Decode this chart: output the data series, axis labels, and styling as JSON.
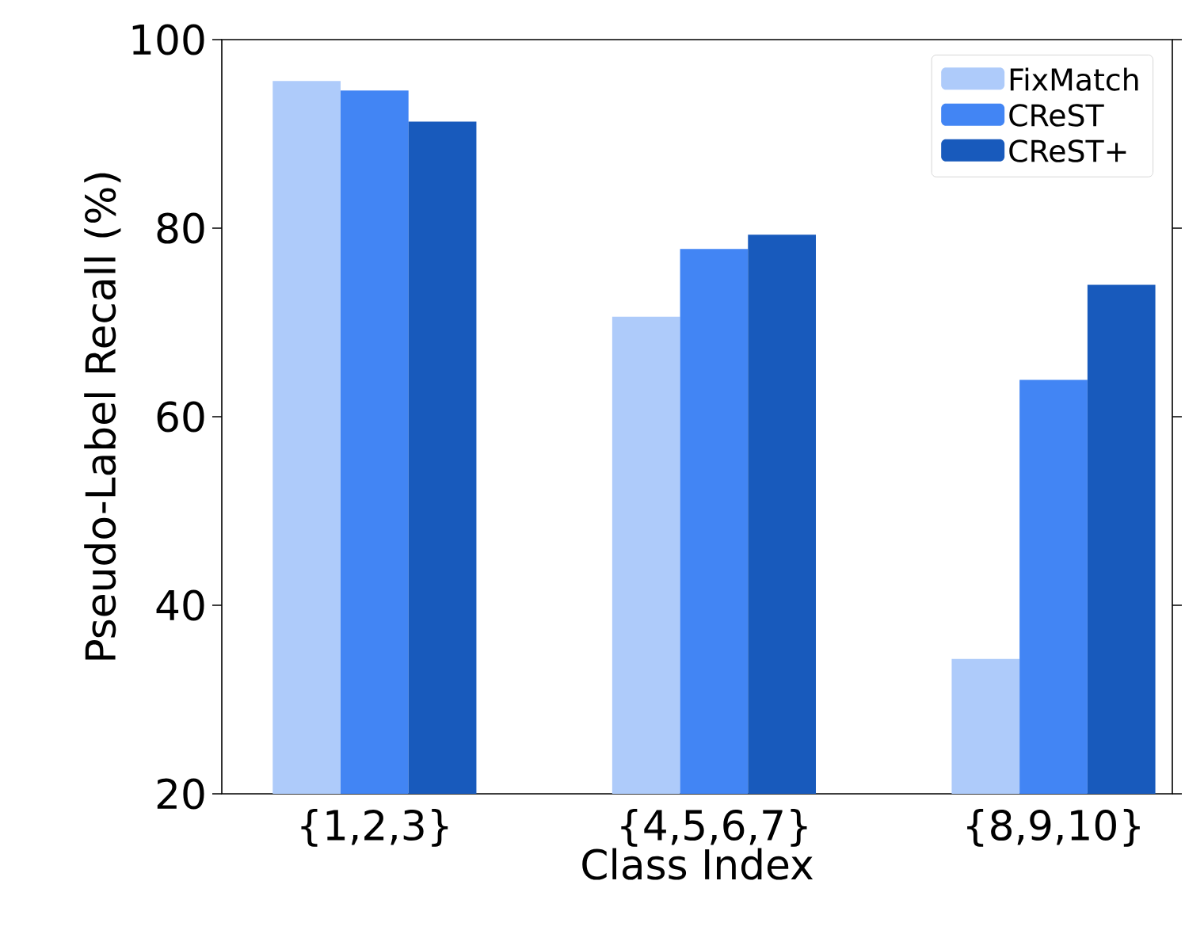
{
  "chart_data": {
    "type": "bar",
    "xlabel": "Class Index",
    "ylabel": "Pseudo-Label Recall (%)",
    "categories": [
      "{1,2,3}",
      "{4,5,6,7}",
      "{8,9,10}"
    ],
    "series": [
      {
        "name": "FixMatch",
        "color": "#aecbfa",
        "values": [
          95.6,
          70.6,
          34.3
        ]
      },
      {
        "name": "CReST",
        "color": "#4285f4",
        "values": [
          94.6,
          77.8,
          63.9
        ]
      },
      {
        "name": "CReST+",
        "color": "#185abc",
        "values": [
          91.3,
          79.3,
          74.0
        ]
      }
    ],
    "ylim": [
      20,
      100
    ],
    "yticks": [
      20,
      40,
      60,
      80,
      100
    ],
    "grid": false,
    "legend": "top right"
  }
}
